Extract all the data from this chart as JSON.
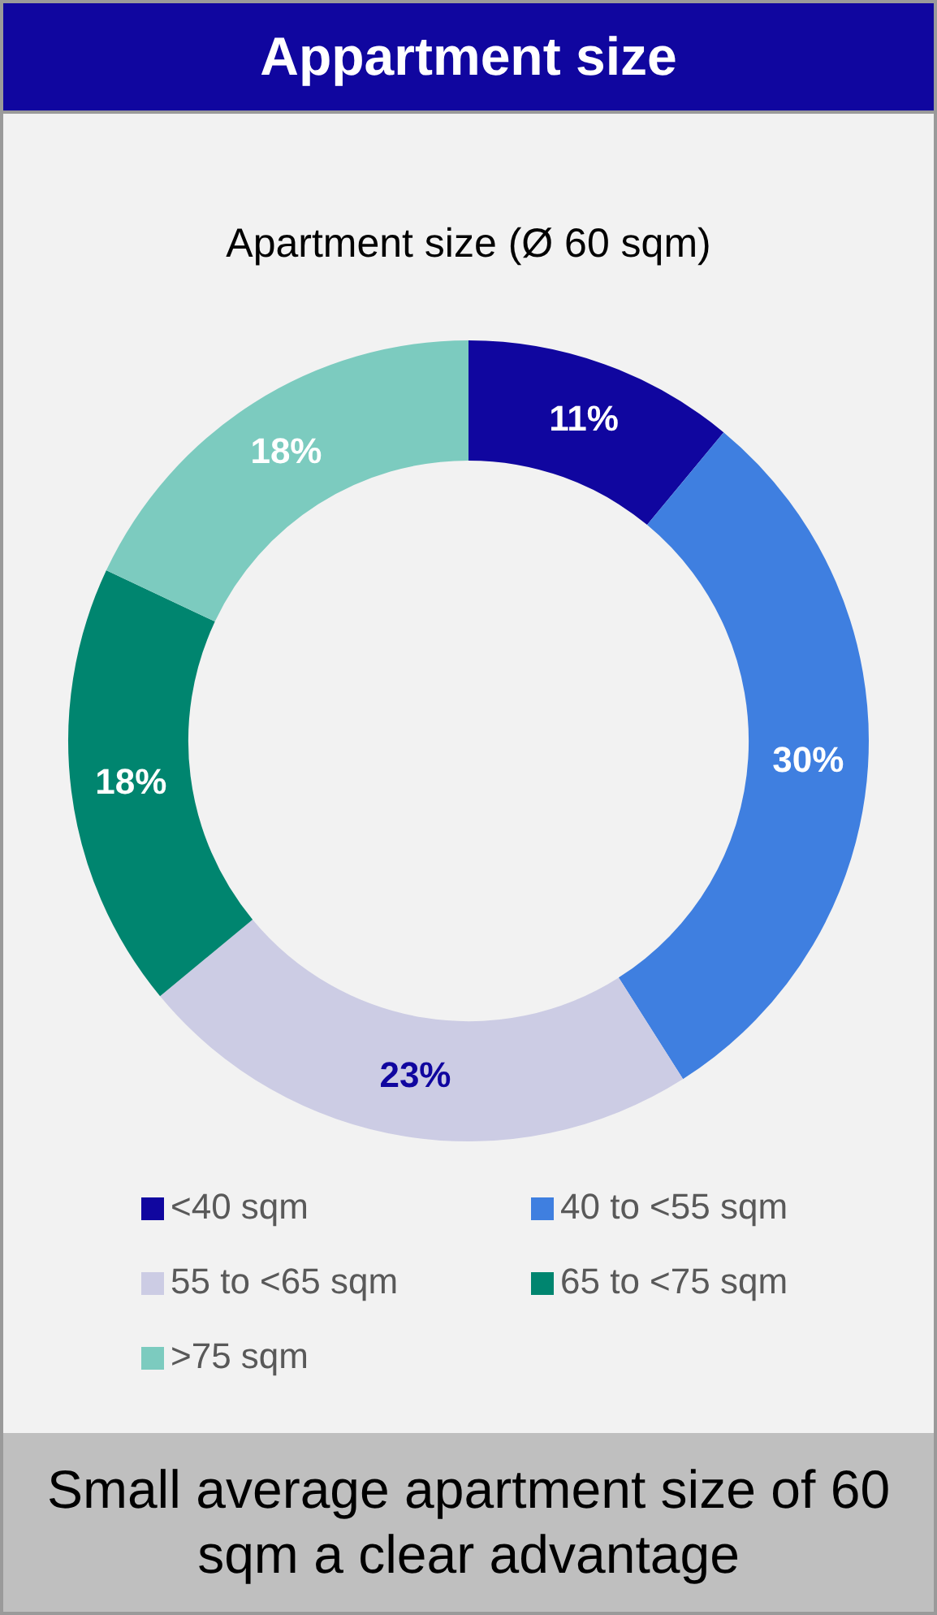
{
  "chart_data": {
    "type": "donut",
    "title": "Appartment size",
    "subtitle": "Apartment size (Ø 60 sqm)",
    "categories": [
      "<40 sqm",
      "40 to <55 sqm",
      "55 to <65 sqm",
      "65 to <75 sqm",
      ">75 sqm"
    ],
    "values": [
      11,
      30,
      23,
      18,
      18
    ],
    "colors": [
      "#10069f",
      "#3f7fe0",
      "#cccce4",
      "#00856f",
      "#7ccbbf"
    ],
    "value_labels": [
      "11%",
      "30%",
      "23%",
      "18%",
      "18%"
    ],
    "legend": "bottom",
    "annotations": [
      "Small average apartment size of 60 sqm a clear advantage"
    ]
  }
}
